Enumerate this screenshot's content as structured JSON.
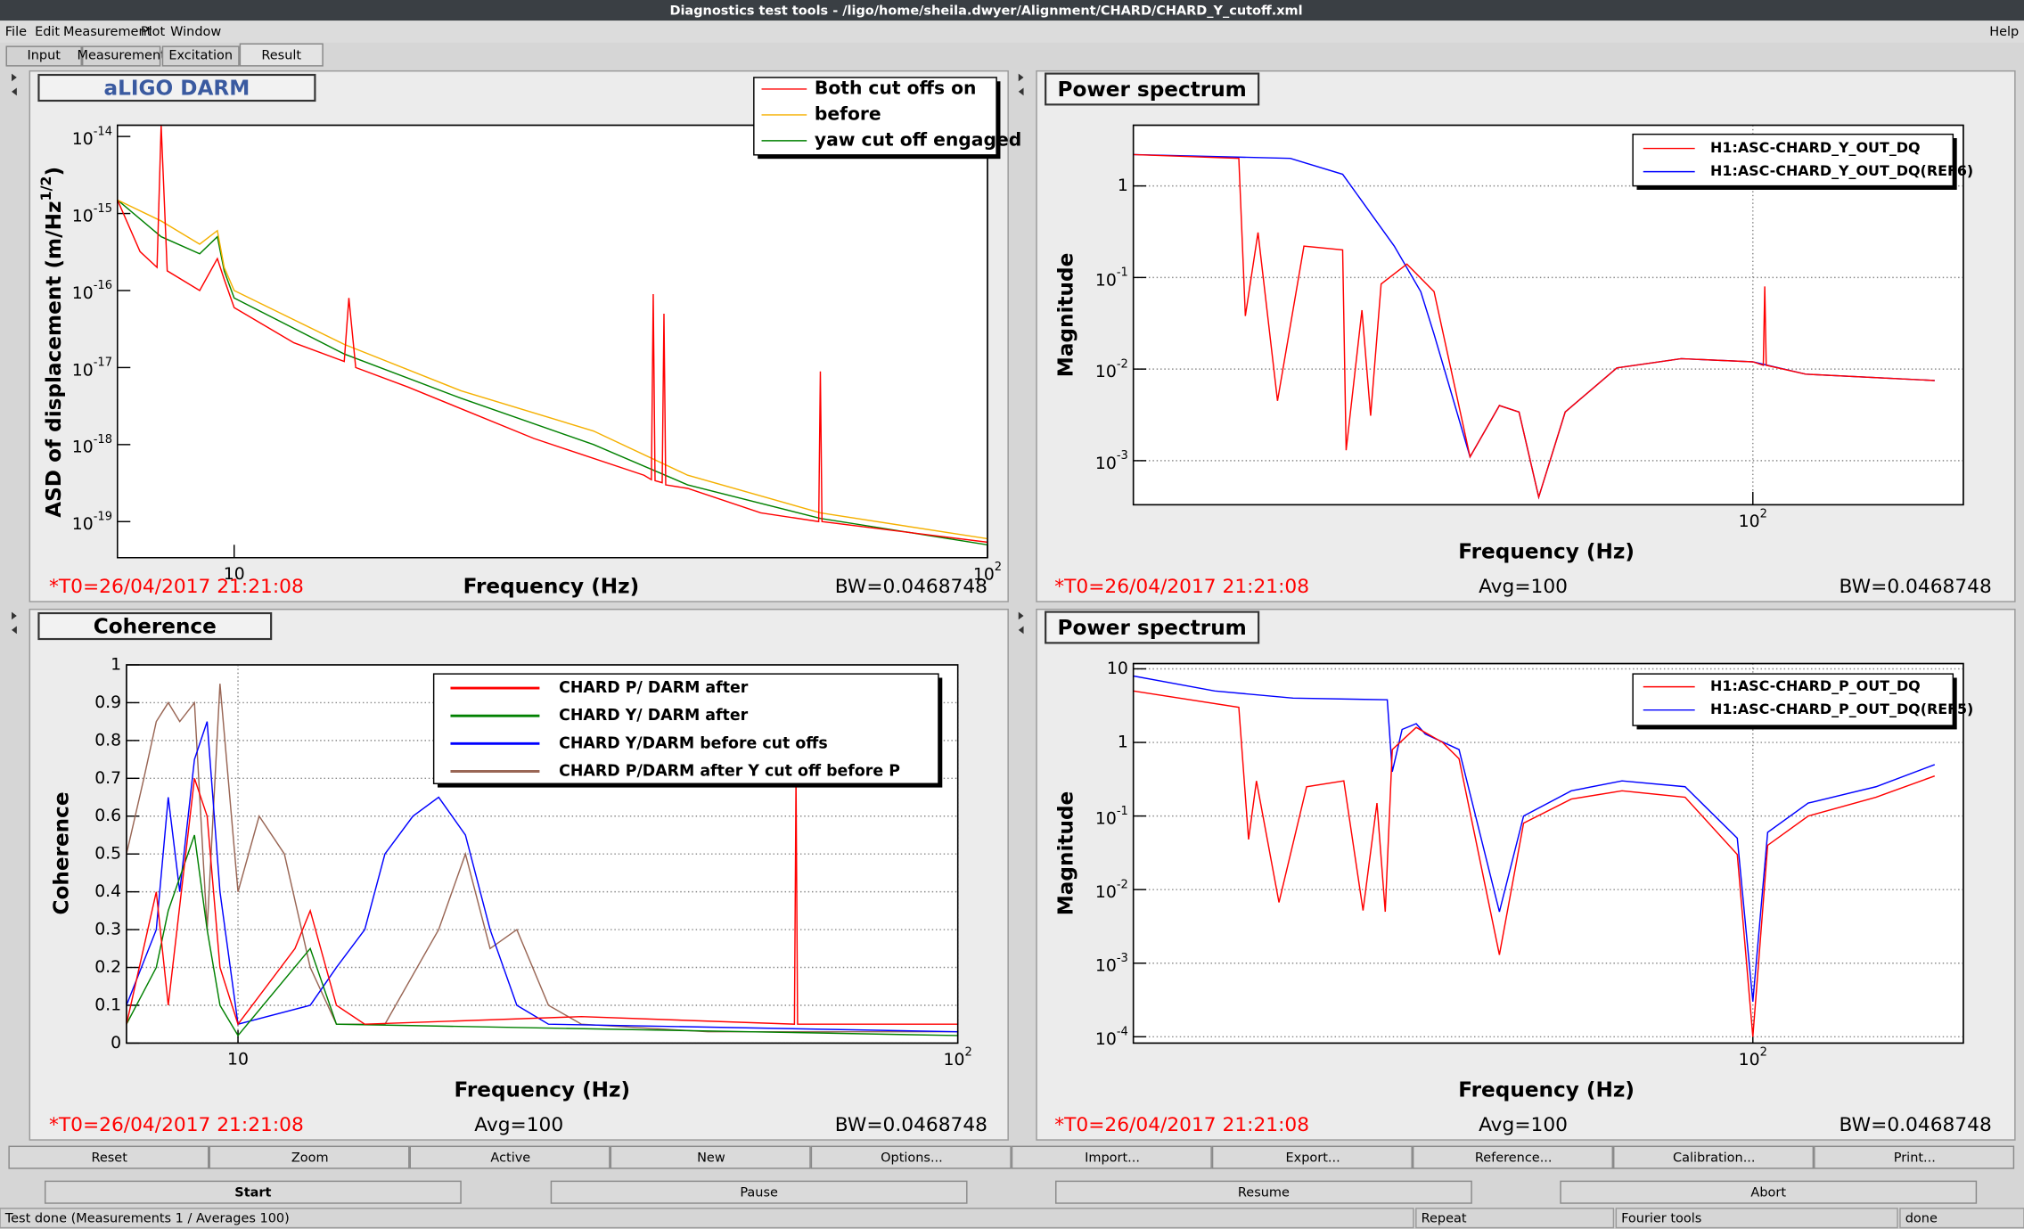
{
  "window": {
    "title": "Diagnostics test tools - /ligo/home/sheila.dwyer/Alignment/CHARD/CHARD_Y_cutoff.xml",
    "menu": [
      "File",
      "Edit",
      "Measurement",
      "Plot",
      "Window"
    ],
    "help": "Help"
  },
  "tabs": [
    "Input",
    "Measurement",
    "Excitation",
    "Result"
  ],
  "selected_tab": 3,
  "panels": [
    {
      "title": "aLIGO DARM",
      "title_color": "#3a5aa0",
      "t0": "*T0=26/04/2017 21:21:08",
      "bw": "BW=0.0468748",
      "chart": {
        "type": "line",
        "xlabel": "Frequency (Hz)",
        "ylabel": {
          "text": "ASD of displacement (m/Hz",
          "sup": "1/2",
          "end": ")"
        },
        "xlog": true,
        "ylog": true,
        "grid": false,
        "xlim": [
          7,
          100
        ],
        "ylim": [
          3.4e-20,
          1.4e-14
        ],
        "xticks": [
          10,
          {
            "value": 100,
            "label": "10",
            "exponent": "2"
          }
        ],
        "yticks": [
          {
            "value": 1e-14,
            "label": "10",
            "exponent": "-14"
          },
          {
            "value": 1e-15,
            "label": "10",
            "exponent": "-15"
          },
          {
            "value": 1e-16,
            "label": "10",
            "exponent": "-16"
          },
          {
            "value": 1e-17,
            "label": "10",
            "exponent": "-17"
          },
          {
            "value": 1e-18,
            "label": "10",
            "exponent": "-18"
          },
          {
            "value": 1e-19,
            "label": "10",
            "exponent": "-19"
          }
        ],
        "series": [
          {
            "name": "Both cut offs on",
            "color": "#ff0000",
            "x": [
              7,
              7.5,
              7.9,
              8.0,
              8.15,
              9,
              9.5,
              9.7,
              10,
              12,
              14,
              14.2,
              14.5,
              17,
              25,
              35,
              35.8,
              36,
              36.2,
              37,
              37.2,
              37.4,
              40,
              50,
              59.7,
              60,
              60.3,
              100
            ],
            "values": [
              1.5e-15,
              3.2e-16,
              2e-16,
              1.4e-14,
              1.8e-16,
              1e-16,
              2.6e-16,
              1.4e-16,
              6e-17,
              2.1e-17,
              1.2e-17,
              8e-17,
              1e-17,
              5.6e-18,
              1.2e-18,
              4e-19,
              3.5e-19,
              9e-17,
              3.4e-19,
              3.2e-19,
              5e-17,
              3e-19,
              2.7e-19,
              1.3e-19,
              1e-19,
              8.9e-18,
              1e-19,
              5.4e-20
            ]
          },
          {
            "name": "before",
            "color": "#f5b000",
            "x": [
              7,
              8,
              9,
              9.5,
              9.7,
              10,
              14,
              20,
              30,
              40,
              60,
              100
            ],
            "values": [
              1.5e-15,
              8e-16,
              4e-16,
              6e-16,
              2e-16,
              1e-16,
              2e-17,
              5e-18,
              1.5e-18,
              4e-19,
              1.3e-19,
              6e-20
            ]
          },
          {
            "name": "yaw cut off engaged",
            "color": "#008000",
            "x": [
              7,
              8,
              9,
              9.5,
              9.7,
              10,
              14,
              20,
              30,
              40,
              60,
              100
            ],
            "values": [
              1.5e-15,
              5e-16,
              3e-16,
              5e-16,
              1.8e-16,
              8e-17,
              1.5e-17,
              4e-18,
              1e-18,
              3e-19,
              1.1e-19,
              5e-20
            ]
          }
        ]
      }
    },
    {
      "title": "Power spectrum",
      "title_color": "#000000",
      "t0": "*T0=26/04/2017 21:21:08",
      "avg": "Avg=100",
      "bw": "BW=0.0468748",
      "chart": {
        "type": "line",
        "xlabel": "Frequency (Hz)",
        "ylabel": {
          "text": "Magnitude"
        },
        "xlog": true,
        "ylog": true,
        "grid": true,
        "xlim": [
          13,
          200
        ],
        "ylim": [
          0.00033,
          4.6
        ],
        "xticks": [
          {
            "value": 100,
            "label": "10",
            "exponent": "2"
          }
        ],
        "yticks": [
          1,
          {
            "value": 0.1,
            "label": "10",
            "exponent": "-1"
          },
          {
            "value": 0.01,
            "label": "10",
            "exponent": "-2"
          },
          {
            "value": 0.001,
            "label": "10",
            "exponent": "-3"
          }
        ],
        "series": [
          {
            "name": "H1:ASC-CHARD_Y_OUT_DQ",
            "color": "#ff0000",
            "x": [
              13,
              18.4,
              18.8,
              19.6,
              20.9,
              22.8,
              25.9,
              26.2,
              27.6,
              28.4,
              29.4,
              32,
              35,
              39.4,
              43.4,
              46.3,
              49.4,
              53.9,
              63.9,
              79,
              100,
              103.5,
              104,
              104.5,
              119,
              182
            ],
            "values": [
              2.2,
              2.0,
              0.038,
              0.31,
              0.0045,
              0.22,
              0.2,
              0.0013,
              0.044,
              0.0031,
              0.085,
              0.14,
              0.07,
              0.0011,
              0.004,
              0.0034,
              0.0004,
              0.0034,
              0.0103,
              0.013,
              0.012,
              0.011,
              0.08,
              0.011,
              0.0088,
              0.0075
            ]
          },
          {
            "name": "H1:ASC-CHARD_Y_OUT_DQ(REF6)",
            "color": "#0000ff",
            "x": [
              13,
              21.8,
              25.9,
              30.7,
              33.5,
              35,
              39.4,
              43.4,
              46.3,
              49.4,
              53.9,
              63.9,
              79,
              100,
              119,
              182
            ],
            "values": [
              2.2,
              2.0,
              1.34,
              0.22,
              0.07,
              0.024,
              0.0011,
              0.004,
              0.0034,
              0.0004,
              0.0034,
              0.0103,
              0.013,
              0.012,
              0.0088,
              0.0075
            ]
          }
        ]
      }
    },
    {
      "title": "Coherence",
      "title_color": "#000000",
      "t0": "*T0=26/04/2017 21:21:08",
      "avg": "Avg=100",
      "bw": "BW=0.0468748",
      "chart": {
        "type": "line",
        "xlabel": "Frequency (Hz)",
        "ylabel": {
          "text": "Coherence"
        },
        "xlog": true,
        "ylog": false,
        "grid": true,
        "xlim": [
          7,
          100
        ],
        "ylim": [
          0,
          1
        ],
        "xticks": [
          10,
          {
            "value": 100,
            "label": "10",
            "exponent": "2"
          }
        ],
        "yticks": [
          0,
          0.1,
          0.2,
          0.3,
          0.4,
          0.5,
          0.6,
          0.7,
          0.8,
          0.9,
          1
        ],
        "series": [
          {
            "name": "CHARD P/ DARM after",
            "color": "#ff0000",
            "x": [
              7,
              7.7,
              8,
              8.7,
              9.06,
              9.44,
              10,
              12,
              12.6,
              13.7,
              15,
              30,
              59.3,
              59.6,
              59.9,
              100
            ],
            "values": [
              0.05,
              0.4,
              0.1,
              0.7,
              0.6,
              0.2,
              0.05,
              0.25,
              0.35,
              0.1,
              0.05,
              0.07,
              0.05,
              0.7,
              0.05,
              0.05
            ]
          },
          {
            "name": "CHARD Y/ DARM  after",
            "color": "#008000",
            "x": [
              7,
              7.7,
              8,
              8.7,
              9.06,
              9.44,
              10,
              12.6,
              13.7,
              100
            ],
            "values": [
              0.05,
              0.2,
              0.35,
              0.55,
              0.3,
              0.1,
              0.02,
              0.25,
              0.05,
              0.02
            ]
          },
          {
            "name": "CHARD Y/DARM before cut offs",
            "color": "#0000ff",
            "x": [
              7,
              7.7,
              8,
              8.3,
              8.7,
              9.06,
              9.44,
              10,
              12.6,
              13.7,
              15,
              16,
              17.5,
              19,
              20.7,
              22.4,
              24.4,
              27,
              100
            ],
            "values": [
              0.1,
              0.3,
              0.65,
              0.4,
              0.75,
              0.85,
              0.4,
              0.05,
              0.1,
              0.2,
              0.3,
              0.5,
              0.6,
              0.65,
              0.55,
              0.3,
              0.1,
              0.05,
              0.03
            ]
          },
          {
            "name": "CHARD P/DARM after Y cut off before P",
            "color": "#996655",
            "x": [
              7,
              7.4,
              7.7,
              8,
              8.3,
              8.7,
              9.06,
              9.44,
              10,
              10.7,
              11.6,
              12.6,
              13.7,
              16,
              19,
              20.7,
              22.4,
              24.4,
              27,
              30,
              45,
              100
            ],
            "values": [
              0.5,
              0.7,
              0.85,
              0.9,
              0.85,
              0.9,
              0.3,
              0.95,
              0.4,
              0.6,
              0.5,
              0.2,
              0.05,
              0.05,
              0.3,
              0.5,
              0.25,
              0.3,
              0.1,
              0.05,
              0.03,
              0.03
            ]
          }
        ]
      }
    },
    {
      "title": "Power spectrum",
      "title_color": "#000000",
      "t0": "*T0=26/04/2017 21:21:08",
      "avg": "Avg=100",
      "bw": "BW=0.0468748",
      "chart": {
        "type": "line",
        "xlabel": "Frequency (Hz)",
        "ylabel": {
          "text": "Magnitude"
        },
        "xlog": true,
        "ylog": true,
        "grid": true,
        "xlim": [
          13,
          200
        ],
        "ylim": [
          8.2e-05,
          11.8
        ],
        "xticks": [
          {
            "value": 100,
            "label": "10",
            "exponent": "2"
          }
        ],
        "yticks": [
          10,
          1,
          {
            "value": 0.1,
            "label": "10",
            "exponent": "-1"
          },
          {
            "value": 0.01,
            "label": "10",
            "exponent": "-2"
          },
          {
            "value": 0.001,
            "label": "10",
            "exponent": "-3"
          },
          {
            "value": 0.0001,
            "label": "10",
            "exponent": "-4"
          }
        ],
        "series": [
          {
            "name": "H1:ASC-CHARD_P_OUT_DQ",
            "color": "#ff0000",
            "x": [
              13,
              18.4,
              19,
              19.5,
              21,
              23,
              26,
              27.7,
              29,
              29.8,
              30.5,
              33,
              36,
              38,
              43.4,
              47,
              55,
              65,
              80,
              95,
              100,
              105,
              120,
              150,
              182
            ],
            "values": [
              5,
              3,
              0.048,
              0.3,
              0.0067,
              0.25,
              0.3,
              0.0052,
              0.15,
              0.005,
              0.8,
              1.6,
              1,
              0.6,
              0.0013,
              0.08,
              0.17,
              0.22,
              0.18,
              0.03,
              0.0001,
              0.04,
              0.1,
              0.18,
              0.35
            ]
          },
          {
            "name": "H1:ASC-CHARD_P_OUT_DQ(REF5)",
            "color": "#0000ff",
            "x": [
              13,
              17,
              22,
              30,
              30.5,
              31.5,
              33,
              34,
              38,
              43.4,
              47,
              55,
              65,
              80,
              95,
              100,
              105,
              120,
              150,
              182
            ],
            "values": [
              8,
              5,
              4,
              3.8,
              0.4,
              1.5,
              1.8,
              1.3,
              0.8,
              0.005,
              0.1,
              0.22,
              0.3,
              0.25,
              0.05,
              0.0003,
              0.06,
              0.15,
              0.25,
              0.5
            ]
          }
        ]
      }
    }
  ],
  "buttons": [
    "Reset",
    "Zoom",
    "Active",
    "New",
    "Options...",
    "Import...",
    "Export...",
    "Reference...",
    "Calibration...",
    "Print..."
  ],
  "run_buttons": [
    {
      "label": "Start",
      "enabled": true
    },
    {
      "label": "Pause",
      "enabled": false
    },
    {
      "label": "Resume",
      "enabled": false
    },
    {
      "label": "Abort",
      "enabled": false
    }
  ],
  "status": [
    "Test done (Measurements 1 / Averages 100)",
    "Repeat",
    "Fourier tools",
    "done"
  ]
}
